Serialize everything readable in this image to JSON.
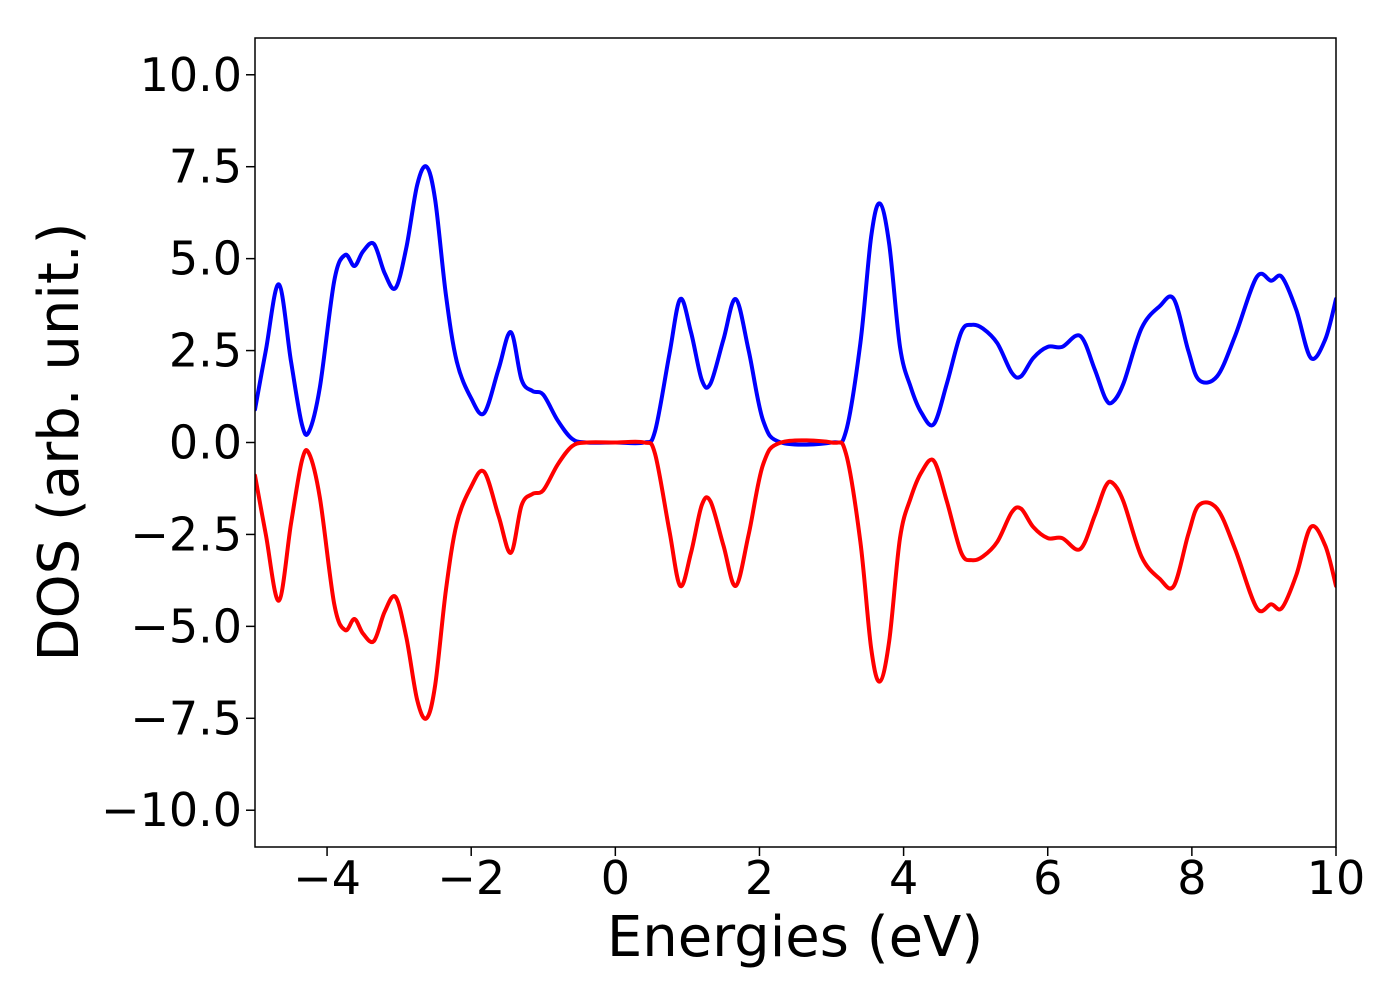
{
  "chart_data": {
    "type": "line",
    "title": "",
    "xlabel": "Energies (eV)",
    "ylabel": "DOS (arb. unit.)",
    "xlim": [
      -5,
      10
    ],
    "ylim": [
      -11,
      11
    ],
    "grid": false,
    "legend": "none",
    "xticks": [
      -4,
      -2,
      0,
      2,
      4,
      6,
      8,
      10
    ],
    "xtick_labels": [
      "−4",
      "−2",
      "0",
      "2",
      "4",
      "6",
      "8",
      "10"
    ],
    "yticks": [
      10,
      7.5,
      5,
      2.5,
      0,
      -2.5,
      -5,
      -7.5,
      -10
    ],
    "ytick_labels": [
      "10.0",
      "7.5",
      "5.0",
      "2.5",
      "0.0",
      "−2.5",
      "−5.0",
      "−7.5",
      "−10.0"
    ],
    "series": [
      {
        "color": "#0000ff",
        "x": [
          -5.0,
          -4.85,
          -4.67,
          -4.5,
          -4.35,
          -4.25,
          -4.1,
          -3.9,
          -3.75,
          -3.62,
          -3.5,
          -3.35,
          -3.2,
          -3.05,
          -2.9,
          -2.75,
          -2.62,
          -2.5,
          -2.35,
          -2.2,
          -2.0,
          -1.82,
          -1.62,
          -1.45,
          -1.3,
          -1.15,
          -1.0,
          -0.8,
          -0.6,
          -0.4,
          0.0,
          0.4,
          0.55,
          0.75,
          0.9,
          1.05,
          1.2,
          1.32,
          1.5,
          1.67,
          1.85,
          2.05,
          2.3,
          3.0,
          3.2,
          3.4,
          3.55,
          3.67,
          3.8,
          3.95,
          4.1,
          4.25,
          4.42,
          4.6,
          4.8,
          4.95,
          5.1,
          5.3,
          5.5,
          5.63,
          5.8,
          6.0,
          6.2,
          6.45,
          6.65,
          6.8,
          6.9,
          7.05,
          7.3,
          7.55,
          7.75,
          7.95,
          8.1,
          8.35,
          8.6,
          8.9,
          9.1,
          9.25,
          9.45,
          9.65,
          9.85,
          10.0
        ],
        "y": [
          0.9,
          2.5,
          4.3,
          2.2,
          0.5,
          0.3,
          1.5,
          4.4,
          5.1,
          4.8,
          5.2,
          5.4,
          4.6,
          4.2,
          5.3,
          7.0,
          7.5,
          6.6,
          4.0,
          2.2,
          1.2,
          0.8,
          2.0,
          3.0,
          1.7,
          1.4,
          1.3,
          0.6,
          0.1,
          0.0,
          0.0,
          0.0,
          0.3,
          2.4,
          3.9,
          3.0,
          1.7,
          1.6,
          2.8,
          3.9,
          2.5,
          0.6,
          0.0,
          0.0,
          0.3,
          2.7,
          5.6,
          6.5,
          5.4,
          2.6,
          1.5,
          0.8,
          0.5,
          1.6,
          3.0,
          3.2,
          3.1,
          2.7,
          1.9,
          1.8,
          2.3,
          2.6,
          2.6,
          2.9,
          2.0,
          1.2,
          1.1,
          1.6,
          3.1,
          3.7,
          3.9,
          2.5,
          1.7,
          1.8,
          2.9,
          4.5,
          4.4,
          4.5,
          3.6,
          2.3,
          2.8,
          3.9
        ]
      },
      {
        "color": "#ff0000",
        "x": [
          -5.0,
          -4.85,
          -4.67,
          -4.5,
          -4.35,
          -4.25,
          -4.1,
          -3.9,
          -3.75,
          -3.62,
          -3.5,
          -3.35,
          -3.2,
          -3.05,
          -2.9,
          -2.75,
          -2.62,
          -2.5,
          -2.35,
          -2.2,
          -2.0,
          -1.82,
          -1.62,
          -1.45,
          -1.3,
          -1.15,
          -1.0,
          -0.8,
          -0.6,
          -0.4,
          0.0,
          0.4,
          0.55,
          0.75,
          0.9,
          1.05,
          1.2,
          1.32,
          1.5,
          1.67,
          1.85,
          2.05,
          2.3,
          3.0,
          3.2,
          3.4,
          3.55,
          3.67,
          3.8,
          3.95,
          4.1,
          4.25,
          4.42,
          4.6,
          4.8,
          4.95,
          5.1,
          5.3,
          5.5,
          5.63,
          5.8,
          6.0,
          6.2,
          6.45,
          6.65,
          6.8,
          6.9,
          7.05,
          7.3,
          7.55,
          7.75,
          7.95,
          8.1,
          8.35,
          8.6,
          8.9,
          9.1,
          9.25,
          9.45,
          9.65,
          9.85,
          10.0
        ],
        "y": [
          -0.9,
          -2.5,
          -4.3,
          -2.2,
          -0.5,
          -0.3,
          -1.5,
          -4.4,
          -5.1,
          -4.8,
          -5.2,
          -5.4,
          -4.6,
          -4.2,
          -5.3,
          -7.0,
          -7.5,
          -6.6,
          -4.0,
          -2.2,
          -1.2,
          -0.8,
          -2.0,
          -3.0,
          -1.7,
          -1.4,
          -1.3,
          -0.6,
          -0.1,
          0.0,
          0.0,
          0.0,
          -0.3,
          -2.4,
          -3.9,
          -3.0,
          -1.7,
          -1.6,
          -2.8,
          -3.9,
          -2.5,
          -0.6,
          0.0,
          0.0,
          -0.3,
          -2.7,
          -5.6,
          -6.5,
          -5.4,
          -2.6,
          -1.5,
          -0.8,
          -0.5,
          -1.6,
          -3.0,
          -3.2,
          -3.1,
          -2.7,
          -1.9,
          -1.8,
          -2.3,
          -2.6,
          -2.6,
          -2.9,
          -2.0,
          -1.2,
          -1.1,
          -1.6,
          -3.1,
          -3.7,
          -3.9,
          -2.5,
          -1.7,
          -1.8,
          -2.9,
          -4.5,
          -4.4,
          -4.5,
          -3.6,
          -2.3,
          -2.8,
          -3.9
        ]
      }
    ]
  }
}
